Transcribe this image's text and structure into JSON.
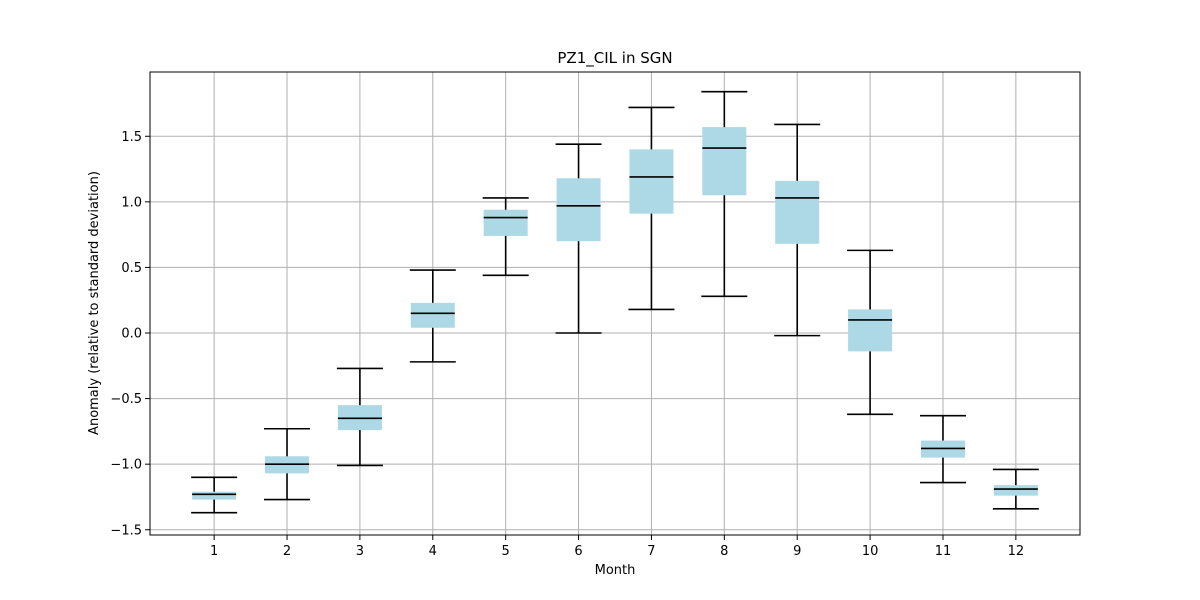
{
  "chart_data": {
    "type": "boxplot",
    "title": "PZ1_CIL in SGN",
    "xlabel": "Month",
    "ylabel": "Anomaly (relative to standard deviation)",
    "categories": [
      "1",
      "2",
      "3",
      "4",
      "5",
      "6",
      "7",
      "8",
      "9",
      "10",
      "11",
      "12"
    ],
    "xlim": [
      0.12,
      12.88
    ],
    "ylim": [
      -1.54,
      1.99
    ],
    "yticks": [
      -1.5,
      -1.0,
      -0.5,
      0.0,
      0.5,
      1.0,
      1.5
    ],
    "ytick_labels": [
      "−1.5",
      "−1.0",
      "−0.5",
      "0.0",
      "0.5",
      "1.0",
      "1.5"
    ],
    "grid": true,
    "box_color": "#add8e6",
    "line_color": "#000000",
    "boxes": [
      {
        "month": 1,
        "whisker_low": -1.37,
        "q1": -1.27,
        "median": -1.23,
        "q3": -1.21,
        "whisker_high": -1.1
      },
      {
        "month": 2,
        "whisker_low": -1.27,
        "q1": -1.07,
        "median": -1.0,
        "q3": -0.94,
        "whisker_high": -0.73
      },
      {
        "month": 3,
        "whisker_low": -1.01,
        "q1": -0.74,
        "median": -0.65,
        "q3": -0.55,
        "whisker_high": -0.27
      },
      {
        "month": 4,
        "whisker_low": -0.22,
        "q1": 0.04,
        "median": 0.15,
        "q3": 0.23,
        "whisker_high": 0.48
      },
      {
        "month": 5,
        "whisker_low": 0.44,
        "q1": 0.74,
        "median": 0.88,
        "q3": 0.94,
        "whisker_high": 1.03
      },
      {
        "month": 6,
        "whisker_low": 0.0,
        "q1": 0.7,
        "median": 0.97,
        "q3": 1.18,
        "whisker_high": 1.44
      },
      {
        "month": 7,
        "whisker_low": 0.18,
        "q1": 0.91,
        "median": 1.19,
        "q3": 1.4,
        "whisker_high": 1.72
      },
      {
        "month": 8,
        "whisker_low": 0.28,
        "q1": 1.05,
        "median": 1.41,
        "q3": 1.57,
        "whisker_high": 1.84
      },
      {
        "month": 9,
        "whisker_low": -0.02,
        "q1": 0.68,
        "median": 1.03,
        "q3": 1.16,
        "whisker_high": 1.59
      },
      {
        "month": 10,
        "whisker_low": -0.62,
        "q1": -0.14,
        "median": 0.1,
        "q3": 0.18,
        "whisker_high": 0.63
      },
      {
        "month": 11,
        "whisker_low": -1.14,
        "q1": -0.95,
        "median": -0.88,
        "q3": -0.82,
        "whisker_high": -0.63
      },
      {
        "month": 12,
        "whisker_low": -1.34,
        "q1": -1.24,
        "median": -1.19,
        "q3": -1.16,
        "whisker_high": -1.04
      }
    ]
  }
}
